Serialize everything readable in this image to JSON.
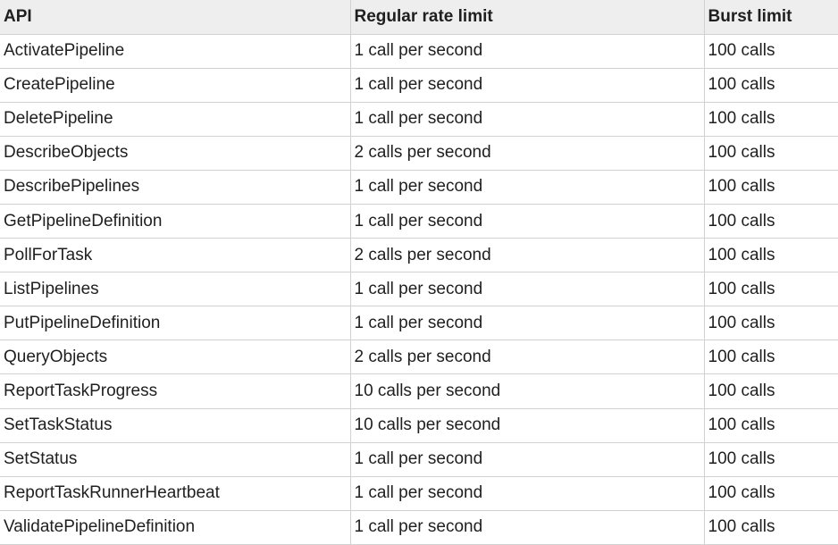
{
  "table": {
    "headers": [
      "API",
      "Regular rate limit",
      "Burst limit"
    ],
    "rows": [
      [
        "ActivatePipeline",
        "1 call per second",
        "100 calls"
      ],
      [
        "CreatePipeline",
        "1 call per second",
        "100 calls"
      ],
      [
        "DeletePipeline",
        "1 call per second",
        "100 calls"
      ],
      [
        "DescribeObjects",
        "2 calls per second",
        "100 calls"
      ],
      [
        "DescribePipelines",
        "1 call per second",
        "100 calls"
      ],
      [
        "GetPipelineDefinition",
        "1 call per second",
        "100 calls"
      ],
      [
        "PollForTask",
        "2 calls per second",
        "100 calls"
      ],
      [
        "ListPipelines",
        "1 call per second",
        "100 calls"
      ],
      [
        "PutPipelineDefinition",
        "1 call per second",
        "100 calls"
      ],
      [
        "QueryObjects",
        "2 calls per second",
        "100 calls"
      ],
      [
        "ReportTaskProgress",
        "10 calls per second",
        "100 calls"
      ],
      [
        "SetTaskStatus",
        "10 calls per second",
        "100 calls"
      ],
      [
        "SetStatus",
        "1 call per second",
        "100 calls"
      ],
      [
        "ReportTaskRunnerHeartbeat",
        "1 call per second",
        "100 calls"
      ],
      [
        "ValidatePipelineDefinition",
        "1 call per second",
        "100 calls"
      ]
    ]
  }
}
